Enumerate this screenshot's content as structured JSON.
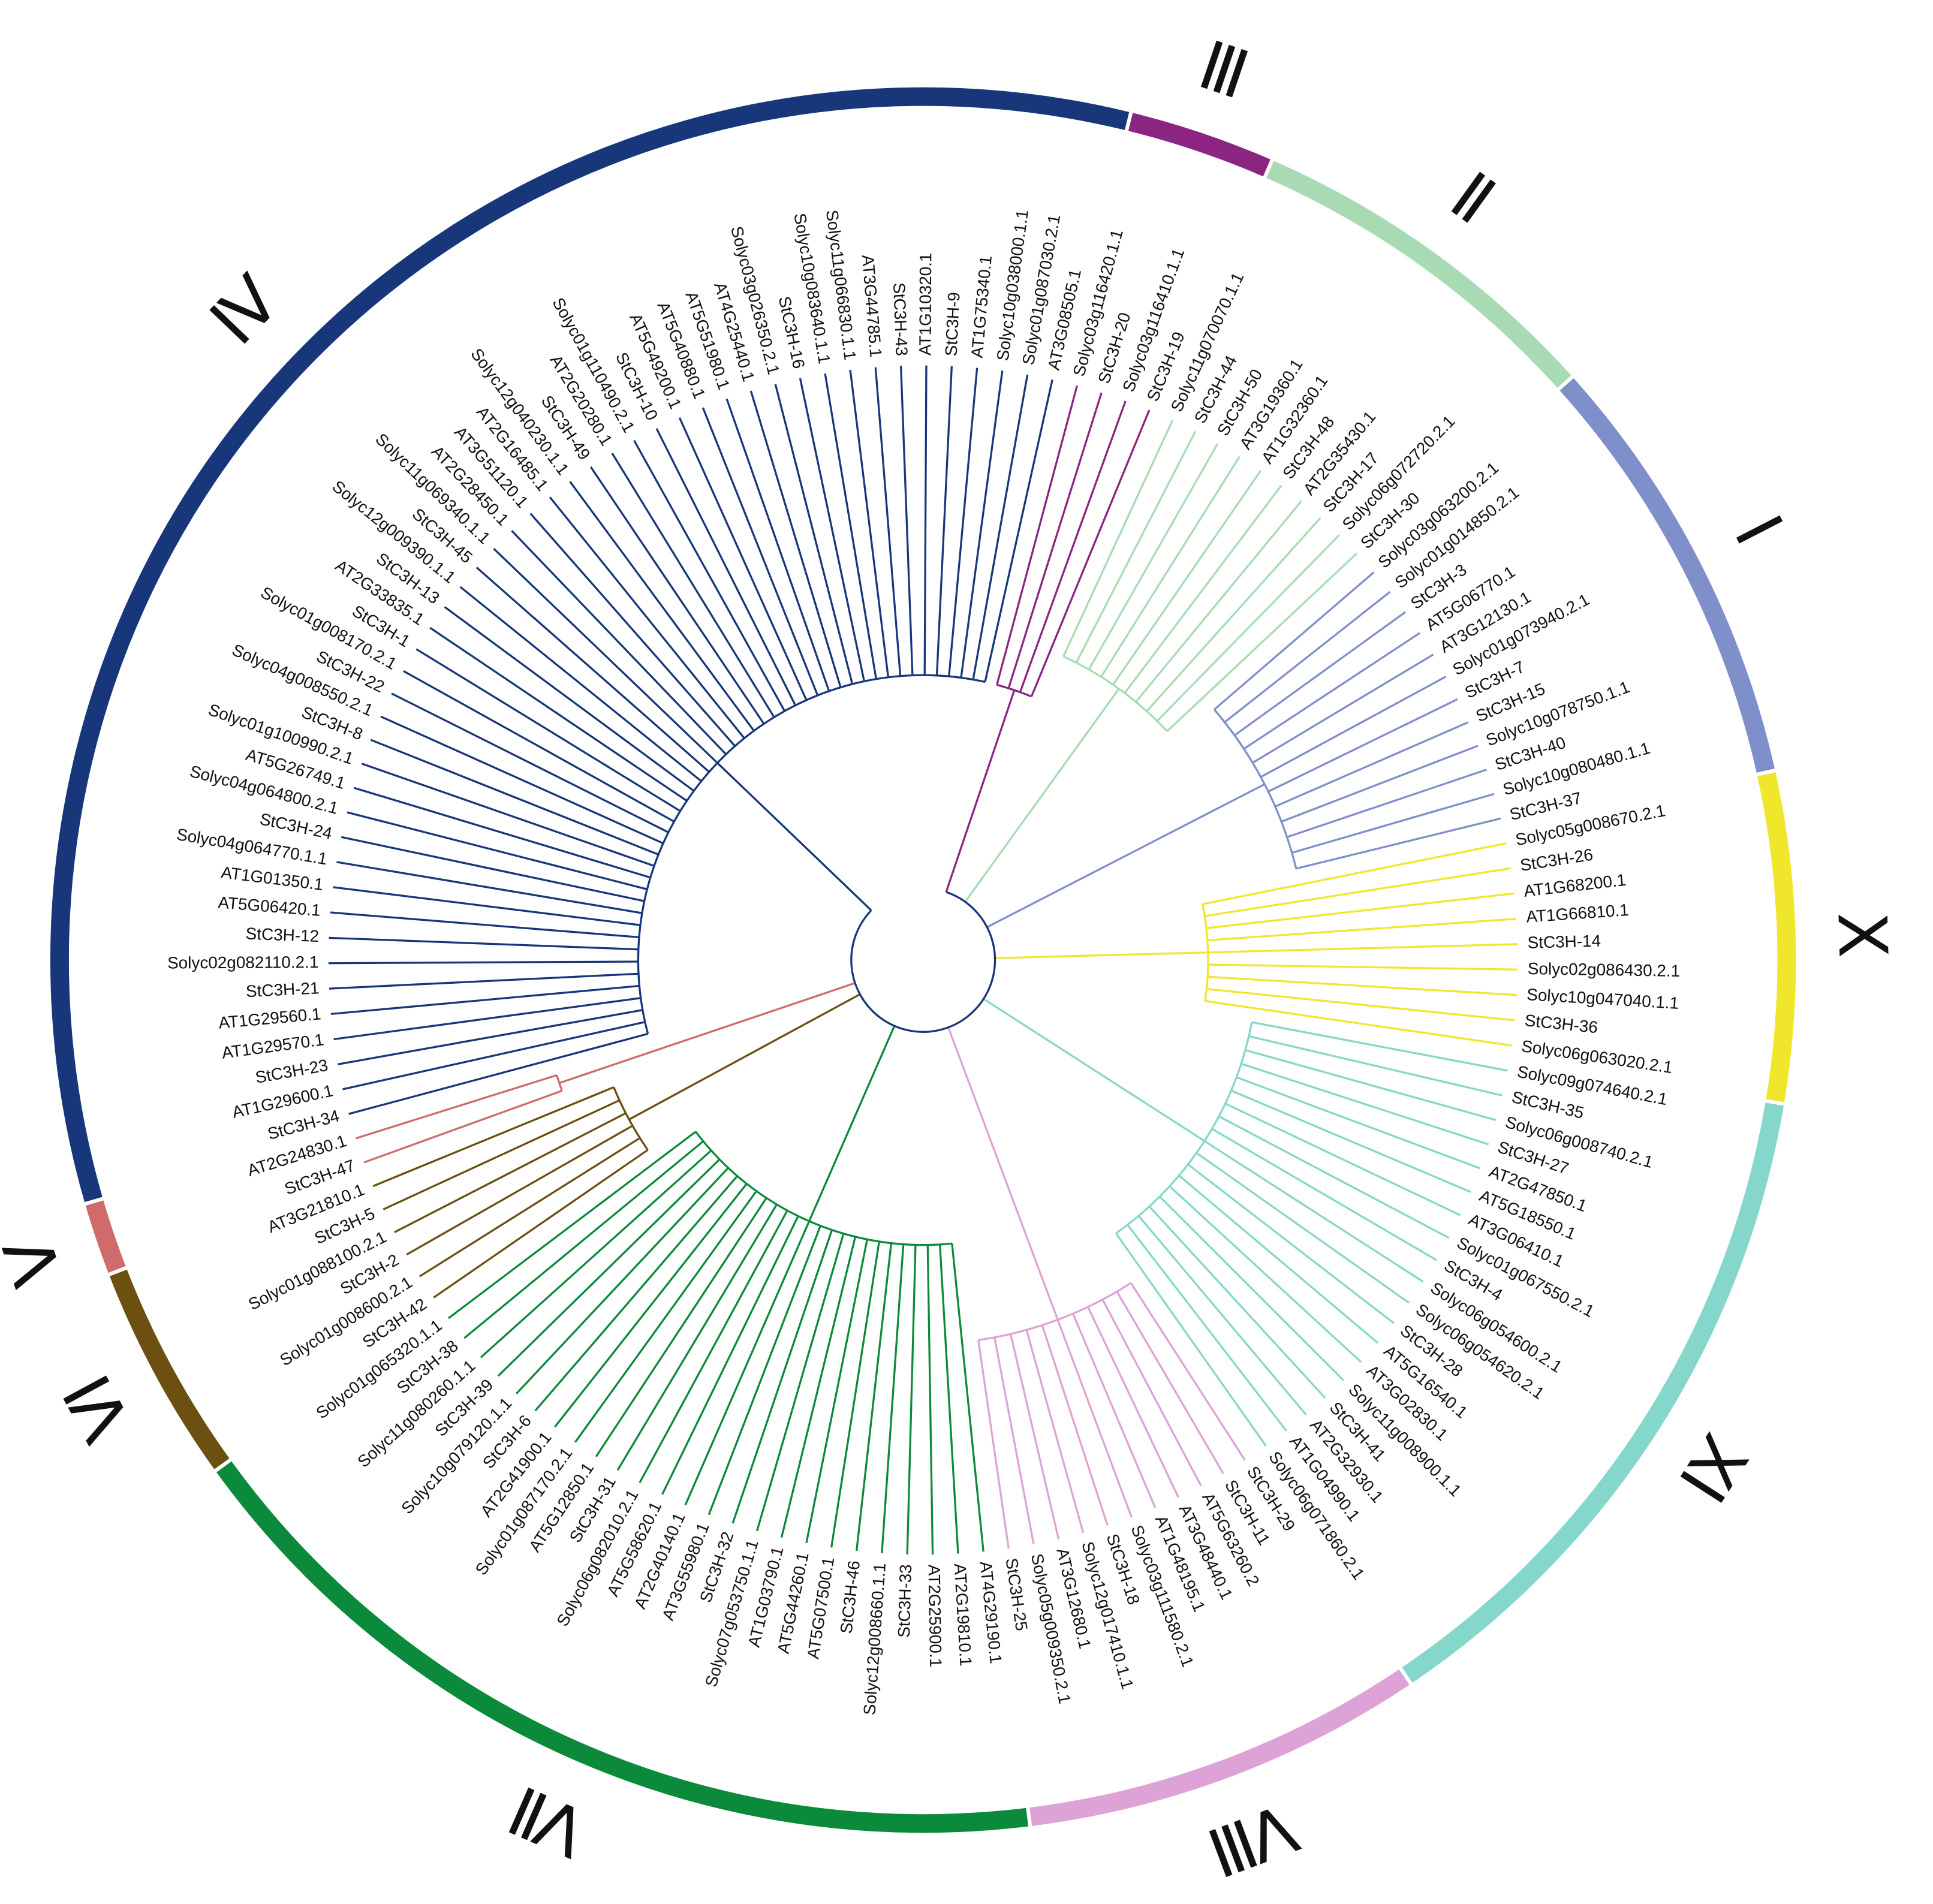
{
  "groups": [
    {
      "numeral": "Ⅲ",
      "color": "#8b2581",
      "leaves": [
        "Solyc03g116420.1.1",
        "StC3H-20",
        "Solyc03g116410.1.1",
        "StC3H-19"
      ]
    },
    {
      "numeral": "Ⅱ",
      "color": "#a8dbb3",
      "leaves": [
        "Solyc11g070070.1.1",
        "StC3H-44",
        "StC3H-50",
        "AT3G19360.1",
        "AT1G32360.1",
        "StC3H-48",
        "AT2G35430.1",
        "StC3H-17",
        "Solyc06g072720.2.1",
        "StC3H-30"
      ]
    },
    {
      "numeral": "Ⅰ",
      "color": "#7f8fc9",
      "leaves": [
        "Solyc03g063200.2.1",
        "Solyc01g014850.2.1",
        "StC3H-3",
        "AT5G06770.1",
        "AT3G12130.1",
        "Solyc01g073940.2.1",
        "StC3H-7",
        "StC3H-15",
        "Solyc10g078750.1.1",
        "StC3H-40",
        "Solyc10g080480.1.1",
        "StC3H-37"
      ]
    },
    {
      "numeral": "Ⅹ",
      "color": "#f0e72c",
      "leaves": [
        "Solyc05g008670.2.1",
        "StC3H-26",
        "AT1G68200.1",
        "AT1G66810.1",
        "StC3H-14",
        "Solyc02g086430.2.1",
        "Solyc10g047040.1.1",
        "StC3H-36",
        "Solyc06g063020.2.1"
      ]
    },
    {
      "numeral": "Ⅺ",
      "color": "#86d7cb",
      "leaves": [
        "Solyc09g074640.2.1",
        "StC3H-35",
        "Solyc06g008740.2.1",
        "StC3H-27",
        "AT2G47850.1",
        "AT5G18550.1",
        "AT3G06410.1",
        "Solyc01g067550.2.1",
        "StC3H-4",
        "Solyc06g054600.2.1",
        "Solyc06g054620.2.1",
        "StC3H-28",
        "AT5G16540.1",
        "AT3G02830.1",
        "Solyc11g008900.1.1",
        "StC3H-41",
        "AT2G32930.1",
        "AT1G04990.1",
        "Solyc06g071860.2.1"
      ]
    },
    {
      "numeral": "Ⅷ",
      "color": "#dea3d6",
      "leaves": [
        "StC3H-29",
        "StC3H-11",
        "AT5G63260.2",
        "AT3G48440.1",
        "AT1G48195.1",
        "Solyc03g111580.2.1",
        "StC3H-18",
        "Solyc12g017410.1.1",
        "AT3G12680.1",
        "Solyc05g009350.2.1",
        "StC3H-25"
      ]
    },
    {
      "numeral": "Ⅶ",
      "color": "#0b8a3b",
      "leaves": [
        "AT4G29190.1",
        "AT2G19810.1",
        "AT2G25900.1",
        "StC3H-33",
        "Solyc12g008660.1.1",
        "StC3H-46",
        "AT5G07500.1",
        "AT5G44260.1",
        "AT1G03790.1",
        "Solyc07g053750.1.1",
        "StC3H-32",
        "AT3G55980.1",
        "AT2G40140.1",
        "AT5G58620.1",
        "Solyc06g082010.2.1",
        "StC3H-31",
        "AT5G12850.1",
        "Solyc01g087170.2.1",
        "AT2G41900.1",
        "StC3H-6",
        "Solyc10g079120.1.1",
        "StC3H-39",
        "Solyc11g080260.1.1",
        "StC3H-38",
        "Solyc01g065320.1.1"
      ]
    },
    {
      "numeral": "Ⅵ",
      "color": "#6b5012",
      "leaves": [
        "StC3H-42",
        "Solyc01g008600.2.1",
        "StC3H-2",
        "Solyc01g088100.2.1",
        "StC3H-5",
        "AT3G21810.1"
      ]
    },
    {
      "numeral": "Ⅴ",
      "color": "#cf6b6b",
      "leaves": [
        "StC3H-47",
        "AT2G24830.1"
      ]
    },
    {
      "numeral": "Ⅳ",
      "color": "#17377a",
      "leaves": [
        "StC3H-34",
        "AT1G29600.1",
        "StC3H-23",
        "AT1G29570.1",
        "AT1G29560.1",
        "StC3H-21",
        "Solyc02g082110.2.1",
        "StC3H-12",
        "AT5G06420.1",
        "AT1G01350.1",
        "Solyc04g064770.1.1",
        "StC3H-24",
        "Solyc04g064800.2.1",
        "AT5G26749.1",
        "Solyc01g100990.2.1",
        "StC3H-8",
        "Solyc04g008550.2.1",
        "StC3H-22",
        "Solyc01g008170.2.1",
        "StC3H-1",
        "AT2G33835.1",
        "StC3H-13",
        "Solyc12g009390.1.1",
        "StC3H-45",
        "Solyc11g069340.1.1",
        "AT2G28450.1",
        "AT3G51120.1",
        "AT2G16485.1",
        "Solyc12g040230.1.1",
        "StC3H-49",
        "AT2G20280.1",
        "Solyc01g110490.2.1",
        "StC3H-10",
        "AT5G49200.1",
        "AT5G40880.1",
        "AT5G51980.1",
        "AT4G25440.1",
        "Solyc03g026350.2.1",
        "StC3H-16",
        "Solyc10g083640.1.1",
        "Solyc11g066830.1.1",
        "AT3G44785.1",
        "StC3H-43",
        "AT1G10320.1",
        "StC3H-9",
        "AT1G75340.1",
        "Solyc10g038000.1.1",
        "Solyc01g087030.2.1",
        "AT3G08505.1"
      ]
    }
  ]
}
